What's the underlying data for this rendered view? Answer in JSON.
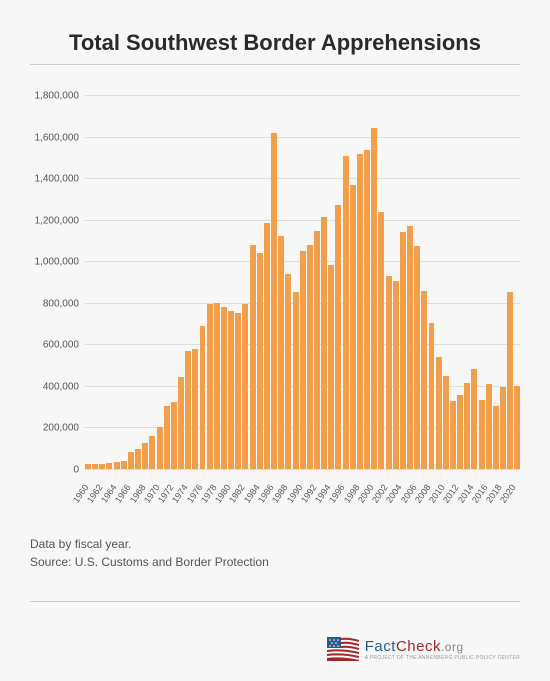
{
  "title": "Total Southwest Border Apprehensions",
  "chart": {
    "type": "bar",
    "bar_color": "#f0a04b",
    "grid_color": "#dddddd",
    "axis_color": "#999999",
    "background_color": "#f7f7f7",
    "ylim": [
      0,
      1800000
    ],
    "yticks": [
      0,
      200000,
      400000,
      600000,
      800000,
      1000000,
      1200000,
      1400000,
      1600000,
      1800000
    ],
    "ytick_labels": [
      "0",
      "200,000",
      "400,000",
      "600,000",
      "800,000",
      "1,000,000",
      "1,200,000",
      "1,400,000",
      "1,600,000",
      "1,800,000"
    ],
    "xtick_step": 2,
    "years": [
      1960,
      1961,
      1962,
      1963,
      1964,
      1965,
      1966,
      1967,
      1968,
      1969,
      1970,
      1971,
      1972,
      1973,
      1974,
      1975,
      1976,
      1977,
      1978,
      1979,
      1980,
      1981,
      1982,
      1983,
      1984,
      1985,
      1986,
      1987,
      1988,
      1989,
      1990,
      1991,
      1992,
      1993,
      1994,
      1995,
      1996,
      1997,
      1998,
      1999,
      2000,
      2001,
      2002,
      2003,
      2004,
      2005,
      2006,
      2007,
      2008,
      2009,
      2010,
      2011,
      2012,
      2013,
      2014,
      2015,
      2016,
      2017,
      2018,
      2019,
      2020
    ],
    "values": [
      22000,
      24000,
      24000,
      31000,
      34000,
      40000,
      80000,
      95000,
      125000,
      160000,
      202000,
      302000,
      322000,
      441000,
      570000,
      580000,
      690000,
      794000,
      800000,
      780000,
      760000,
      750000,
      795000,
      1080000,
      1040000,
      1183000,
      1615000,
      1123000,
      940000,
      854000,
      1050000,
      1078000,
      1145000,
      1213000,
      980000,
      1272000,
      1508000,
      1369000,
      1517000,
      1537000,
      1643000,
      1235000,
      930000,
      905000,
      1139000,
      1171000,
      1072000,
      858000,
      705000,
      541000,
      448000,
      328000,
      357000,
      414000,
      480000,
      331000,
      409000,
      304000,
      397000,
      852000,
      400000
    ]
  },
  "notes": {
    "line1": "Data by fiscal year.",
    "line2": "Source: U.S. Customs and Border Protection"
  },
  "logo": {
    "fact": "Fact",
    "check": "Check",
    "org": ".org",
    "sub": "A PROJECT OF THE ANNENBERG PUBLIC POLICY CENTER",
    "flag_blue": "#2b5a8c",
    "flag_red": "#a02828",
    "flag_white": "#ffffff"
  }
}
